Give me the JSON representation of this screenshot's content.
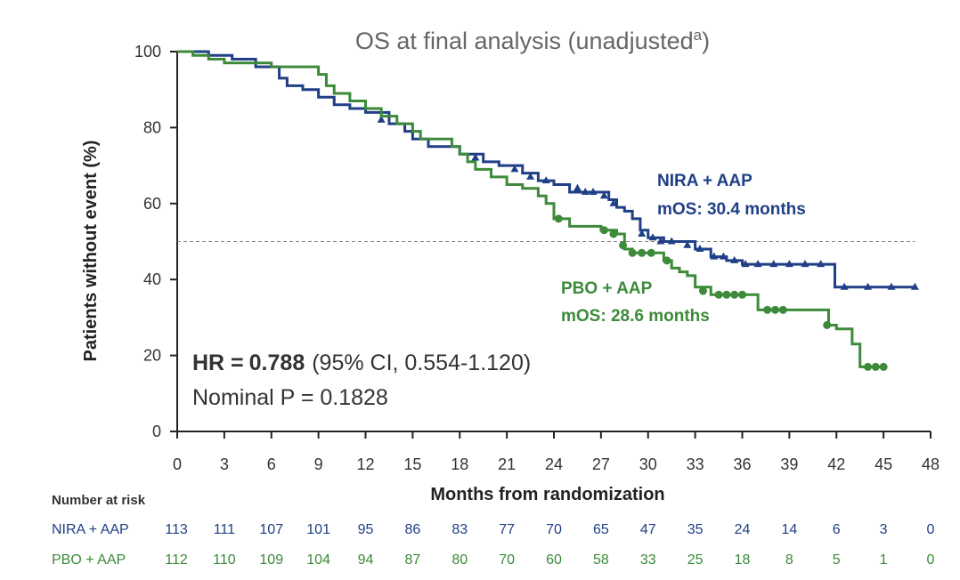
{
  "chart_data": {
    "type": "line",
    "title": "OS at final analysis (unadjusted",
    "title_superscript": "a",
    "title_close": ")",
    "xlabel": "Months from randomization",
    "ylabel": "Patients without event (%)",
    "xlim": [
      0,
      48
    ],
    "ylim": [
      0,
      100
    ],
    "x_ticks": [
      0,
      3,
      6,
      9,
      12,
      15,
      18,
      21,
      24,
      27,
      30,
      33,
      36,
      39,
      42,
      45,
      48
    ],
    "y_ticks": [
      0,
      20,
      40,
      60,
      80,
      100
    ],
    "reference_line_y": 50,
    "series": [
      {
        "name": "NIRA + AAP",
        "median_label": "mOS: 30.4 months",
        "color": "#1f3f86",
        "censor_marker": "triangle",
        "points": [
          [
            0,
            100
          ],
          [
            2,
            99
          ],
          [
            3.5,
            98
          ],
          [
            5,
            96
          ],
          [
            6.5,
            93
          ],
          [
            7,
            91
          ],
          [
            8,
            90
          ],
          [
            9,
            88
          ],
          [
            10,
            86
          ],
          [
            11,
            85
          ],
          [
            12,
            84
          ],
          [
            13.5,
            81
          ],
          [
            14.5,
            79
          ],
          [
            15,
            77
          ],
          [
            16,
            75
          ],
          [
            18,
            73
          ],
          [
            19.5,
            71
          ],
          [
            20.5,
            70
          ],
          [
            22,
            68
          ],
          [
            23,
            66
          ],
          [
            24,
            65
          ],
          [
            25,
            63
          ],
          [
            27,
            63
          ],
          [
            27.5,
            61
          ],
          [
            28,
            59
          ],
          [
            28.5,
            58
          ],
          [
            29,
            56
          ],
          [
            29.5,
            53
          ],
          [
            30,
            51
          ],
          [
            31,
            50
          ],
          [
            33,
            48
          ],
          [
            34,
            46
          ],
          [
            35,
            45
          ],
          [
            36,
            44
          ],
          [
            41.8,
            44
          ],
          [
            41.9,
            38
          ],
          [
            47,
            38
          ]
        ],
        "censors": [
          [
            13,
            82
          ],
          [
            19,
            72
          ],
          [
            21.5,
            69
          ],
          [
            22.5,
            67
          ],
          [
            23.5,
            66
          ],
          [
            25.5,
            64
          ],
          [
            26,
            63
          ],
          [
            26.5,
            63
          ],
          [
            27.2,
            62
          ],
          [
            27.8,
            60
          ],
          [
            29.6,
            52
          ],
          [
            30.3,
            51
          ],
          [
            30.8,
            50
          ],
          [
            31.5,
            50
          ],
          [
            32.5,
            49
          ],
          [
            33.3,
            48
          ],
          [
            34.2,
            46
          ],
          [
            34.8,
            46
          ],
          [
            35.5,
            45
          ],
          [
            36.2,
            44
          ],
          [
            37,
            44
          ],
          [
            38,
            44
          ],
          [
            39,
            44
          ],
          [
            40,
            44
          ],
          [
            41,
            44
          ],
          [
            42.5,
            38
          ],
          [
            44,
            38
          ],
          [
            45.5,
            38
          ],
          [
            47,
            38
          ]
        ]
      },
      {
        "name": "PBO + AAP",
        "median_label": "mOS: 28.6 months",
        "color": "#3c8a3a",
        "censor_marker": "circle",
        "points": [
          [
            0,
            100
          ],
          [
            1,
            99
          ],
          [
            2,
            98
          ],
          [
            3,
            97
          ],
          [
            6,
            96
          ],
          [
            8.5,
            96
          ],
          [
            9,
            94
          ],
          [
            9.5,
            91
          ],
          [
            10,
            89
          ],
          [
            11,
            87
          ],
          [
            12,
            85
          ],
          [
            13,
            83
          ],
          [
            14,
            81
          ],
          [
            15,
            79
          ],
          [
            15.5,
            77
          ],
          [
            17.5,
            75
          ],
          [
            18,
            73
          ],
          [
            18.5,
            71
          ],
          [
            19,
            69
          ],
          [
            20,
            67
          ],
          [
            21,
            65
          ],
          [
            22,
            64
          ],
          [
            23,
            62
          ],
          [
            23.5,
            60
          ],
          [
            24,
            56
          ],
          [
            25,
            54
          ],
          [
            27,
            53
          ],
          [
            28,
            52
          ],
          [
            28.5,
            48
          ],
          [
            29,
            47
          ],
          [
            30.5,
            47
          ],
          [
            31,
            45
          ],
          [
            31.5,
            43
          ],
          [
            32,
            42
          ],
          [
            32.5,
            41
          ],
          [
            33,
            38
          ],
          [
            34,
            36
          ],
          [
            36,
            36
          ],
          [
            37,
            32
          ],
          [
            38.5,
            32
          ],
          [
            41,
            32
          ],
          [
            41.5,
            28
          ],
          [
            42,
            27
          ],
          [
            43,
            23
          ],
          [
            43.5,
            17
          ],
          [
            45,
            17
          ]
        ],
        "censors": [
          [
            24.3,
            56
          ],
          [
            27.2,
            53
          ],
          [
            27.8,
            52
          ],
          [
            28.4,
            49
          ],
          [
            29,
            47
          ],
          [
            29.6,
            47
          ],
          [
            30.2,
            47
          ],
          [
            31.2,
            45
          ],
          [
            33.5,
            37
          ],
          [
            34.5,
            36
          ],
          [
            35,
            36
          ],
          [
            35.5,
            36
          ],
          [
            36,
            36
          ],
          [
            37.6,
            32
          ],
          [
            38.1,
            32
          ],
          [
            38.6,
            32
          ],
          [
            41.4,
            28
          ],
          [
            44,
            17
          ],
          [
            44.5,
            17
          ],
          [
            45,
            17
          ]
        ]
      }
    ],
    "annotations": {
      "hr_label": "HR =",
      "hr_value": "0.788",
      "hr_ci": "(95% CI, 0.554-1.120)",
      "p_text": "Nominal P = 0.1828"
    },
    "risk_table": {
      "header": "Number at risk",
      "rows": [
        {
          "label": "NIRA + AAP",
          "color": "#1f3f86",
          "values": [
            "113",
            "111",
            "107",
            "101",
            "95",
            "86",
            "83",
            "77",
            "70",
            "65",
            "47",
            "35",
            "24",
            "14",
            "6",
            "3",
            "0"
          ]
        },
        {
          "label": "PBO + AAP",
          "color": "#3c8a3a",
          "values": [
            "112",
            "110",
            "109",
            "104",
            "94",
            "87",
            "80",
            "70",
            "60",
            "58",
            "33",
            "25",
            "18",
            "8",
            "5",
            "1",
            "0"
          ]
        }
      ]
    }
  }
}
